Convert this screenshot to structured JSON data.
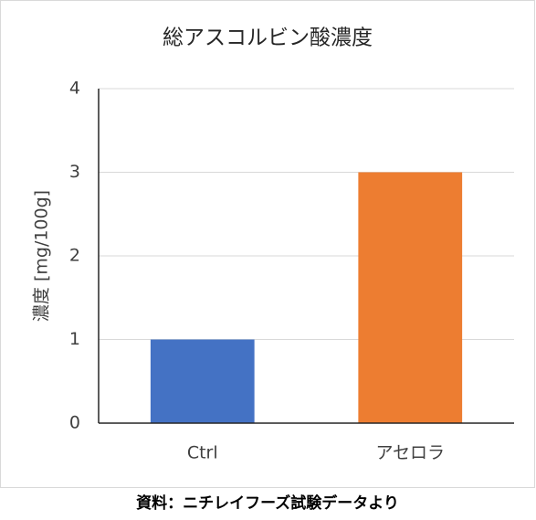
{
  "chart_data": {
    "type": "bar",
    "title": "総アスコルビン酸濃度",
    "y_label": "濃度 [mg/100g]",
    "categories": [
      "Ctrl",
      "アセロラ"
    ],
    "values": [
      1,
      3
    ],
    "colors": [
      "#4472c4",
      "#ed7d31"
    ],
    "ylim": [
      0,
      4
    ],
    "yticks": [
      0,
      1,
      2,
      3,
      4
    ],
    "grid": true,
    "source": "資料：ニチレイフーズ試験データより"
  }
}
